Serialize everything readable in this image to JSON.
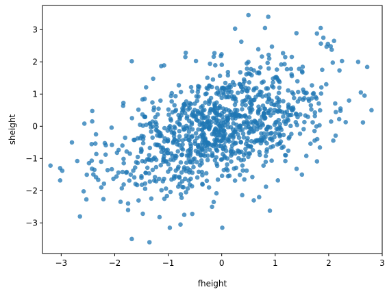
{
  "chart_data": {
    "type": "scatter",
    "title": "",
    "xlabel": "fheight",
    "ylabel": "sheight",
    "xlim": [
      -3.35,
      3.0
    ],
    "ylim": [
      -3.95,
      3.75
    ],
    "xticks": [
      -3,
      -2,
      -1,
      0,
      1,
      2,
      3
    ],
    "yticks": [
      -3,
      -2,
      -1,
      0,
      1,
      2,
      3
    ],
    "grid": false,
    "marker_color": "#1f77b4",
    "marker_alpha": 0.75,
    "series": [
      {
        "n_points": 1078,
        "x_mean": 0.0,
        "y_mean": 0.0,
        "x_sd": 1.0,
        "y_sd": 1.0,
        "correlation": 0.5
      }
    ],
    "notable_points": [
      [
        0.5,
        3.45
      ],
      [
        0.87,
        3.4
      ],
      [
        0.25,
        3.03
      ],
      [
        0.81,
        3.05
      ],
      [
        1.85,
        3.05
      ],
      [
        1.78,
        2.88
      ],
      [
        1.9,
        2.75
      ],
      [
        2.1,
        2.65
      ],
      [
        1.96,
        2.47
      ],
      [
        2.55,
        2.0
      ],
      [
        2.72,
        1.84
      ],
      [
        -1.68,
        2.02
      ],
      [
        -1.13,
        1.87
      ],
      [
        -0.68,
        2.15
      ],
      [
        2.8,
        0.5
      ],
      [
        2.64,
        0.12
      ],
      [
        2.6,
        1.05
      ],
      [
        2.67,
        0.95
      ],
      [
        2.38,
        0.8
      ],
      [
        2.22,
        0.55
      ],
      [
        2.22,
        0.48
      ],
      [
        -3.2,
        -1.22
      ],
      [
        -3.02,
        -1.3
      ],
      [
        -2.98,
        -1.38
      ],
      [
        -3.02,
        -1.68
      ],
      [
        -2.8,
        -0.5
      ],
      [
        -2.7,
        -1.08
      ],
      [
        -2.65,
        -2.8
      ],
      [
        -2.53,
        -2.27
      ],
      [
        -2.43,
        -1.07
      ],
      [
        -2.38,
        -1.35
      ],
      [
        -2.35,
        -1.58
      ],
      [
        -2.42,
        0.15
      ],
      [
        -2.35,
        -0.25
      ],
      [
        -1.68,
        -3.5
      ],
      [
        -1.35,
        -3.6
      ],
      [
        -0.97,
        -3.15
      ],
      [
        -0.77,
        -3.05
      ],
      [
        -0.55,
        -2.72
      ],
      [
        -0.7,
        -2.75
      ],
      [
        0.01,
        -3.15
      ],
      [
        -0.18,
        -2.5
      ],
      [
        -0.15,
        -2.35
      ],
      [
        0.6,
        -2.3
      ],
      [
        0.7,
        -2.2
      ],
      [
        0.9,
        -2.62
      ],
      [
        -1.75,
        -2.6
      ],
      [
        -1.75,
        -2.4
      ],
      [
        -2.25,
        -1.9
      ],
      [
        -2.2,
        -1.78
      ],
      [
        -1.5,
        -1.55
      ],
      [
        1.05,
        -1.68
      ],
      [
        1.4,
        -1.32
      ],
      [
        1.5,
        -1.5
      ]
    ]
  }
}
